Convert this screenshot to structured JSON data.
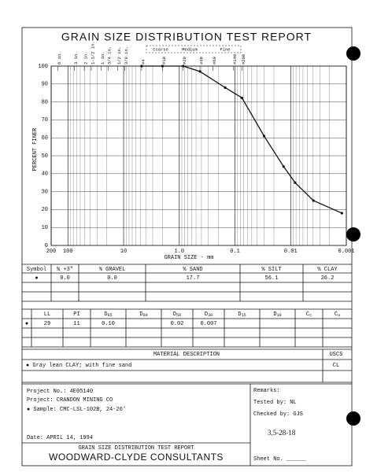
{
  "chart_data": {
    "type": "line",
    "title": "GRAIN SIZE DISTRIBUTION TEST REPORT",
    "x_label": "GRAIN SIZE - mm",
    "y_label": "PERCENT FINER",
    "log_x": true,
    "grid": true,
    "xlim": [
      200,
      0.001
    ],
    "ylim": [
      0,
      100
    ],
    "xticks": [
      200,
      100,
      10,
      {
        "value": 1,
        "label": "1.0"
      },
      0.1,
      0.01,
      0.001
    ],
    "yticks": [
      0,
      10,
      20,
      30,
      40,
      50,
      60,
      70,
      80,
      90,
      100
    ],
    "sieves": [
      {
        "value": 152.4,
        "label": "6 in."
      },
      {
        "value": 76.2,
        "label": "3 in."
      },
      {
        "value": 50.8,
        "label": "2 in."
      },
      {
        "value": 38.1,
        "label": "1-1/2 in."
      },
      {
        "value": 25.4,
        "label": "1 in."
      },
      {
        "value": 19.05,
        "label": "3/4 in."
      },
      {
        "value": 12.7,
        "label": "1/2 in."
      },
      {
        "value": 9.525,
        "label": "3/8 in."
      },
      {
        "value": 4.75,
        "label": "#4"
      },
      {
        "value": 2.0,
        "label": "#10"
      },
      {
        "value": 0.85,
        "label": "#20"
      },
      {
        "value": 0.425,
        "label": "#40"
      },
      {
        "value": 0.25,
        "label": "#60"
      },
      {
        "value": 0.106,
        "label": "#140"
      },
      {
        "value": 0.075,
        "label": "#200"
      }
    ],
    "sand_fractions": [
      "Coarse",
      "Medium",
      "Fine"
    ],
    "series": [
      {
        "color": "#111111",
        "x": [
          4.75,
          2.0,
          0.85,
          0.425,
          0.15,
          0.075,
          0.03,
          0.0134,
          0.0083,
          0.0039,
          0.0012
        ],
        "values": [
          100,
          100,
          100,
          97,
          88,
          82.3,
          61,
          44,
          35,
          25,
          18
        ]
      }
    ]
  },
  "summary_table": {
    "headers": [
      "Symbol",
      "% +3\"",
      "% GRAVEL",
      "% SAND",
      "% SILT",
      "% CLAY"
    ],
    "rows": [
      [
        "●",
        "0.0",
        "0.0",
        "17.7",
        "56.1",
        "26.2"
      ]
    ]
  },
  "limits_table": {
    "headers": [
      {
        "text": "LL"
      },
      {
        "text": "PI"
      },
      {
        "text": "D",
        "sub": "85"
      },
      {
        "text": "D",
        "sub": "60"
      },
      {
        "text": "D",
        "sub": "50"
      },
      {
        "text": "D",
        "sub": "30"
      },
      {
        "text": "D",
        "sub": "15"
      },
      {
        "text": "D",
        "sub": "10"
      },
      {
        "text": "C",
        "sub": "c"
      },
      {
        "text": "C",
        "sub": "u"
      }
    ],
    "symbol": "●",
    "rows": [
      [
        "29",
        "11",
        "0.10",
        null,
        "0.02",
        "0.007",
        null,
        null,
        null,
        null
      ]
    ]
  },
  "material": {
    "header": "MATERIAL DESCRIPTION",
    "uscs_header": "USCS",
    "description": "● Gray lean CLAY; with fine sand",
    "uscs": "CL"
  },
  "project": {
    "number": "Project No.: 4E05140",
    "name": "Project: CRANDON MINING CO",
    "sample": "● Sample: CMC-LSL-102B, 24-26'",
    "date": "Date: APRIL 14, 1994"
  },
  "remarks": {
    "label": "Remarks:",
    "tested": "Tested by: NL",
    "checked": "Checked by: GJS",
    "note": "3.5-28-18",
    "sheet": "Sheet No. ______"
  },
  "footer": {
    "report": "GRAIN SIZE DISTRIBUTION TEST REPORT",
    "company": "WOODWARD-CLYDE CONSULTANTS"
  }
}
